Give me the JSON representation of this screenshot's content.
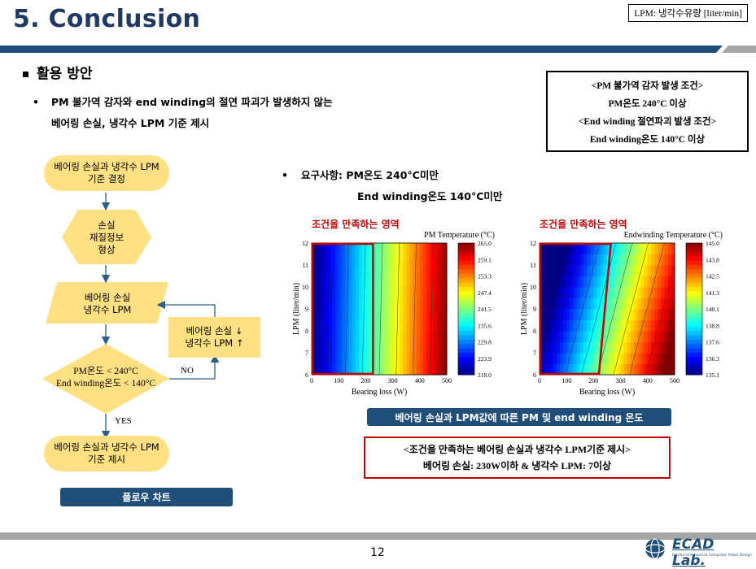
{
  "header": {
    "title": "5. Conclusion",
    "legend_note": "LPM: 냉각수유량 [liter/min]"
  },
  "section": {
    "heading": "활용 방안",
    "bullet1_line1": "PM 불가역 감자와 end winding의 절연 파괴가 발생하지 않는",
    "bullet1_line2": "베어링 손실, 냉각수 LPM 기준 제시",
    "bullet2_line1": "요구사항: PM온도 240°C미만",
    "bullet2_line2": "End winding온도 140°C미만"
  },
  "condition_box": {
    "line1": "<PM 불가역 감자 발생 조건>",
    "line2": "PM온도 240°C 이상",
    "line3": "<End winding 절연파괴 발생 조건>",
    "line4": "End winding온도 140°C 이상"
  },
  "flowchart": {
    "start": [
      "베어링 손실과 냉각수 LPM",
      "기준 결정"
    ],
    "hex": [
      "손실",
      "재질정보",
      "형상"
    ],
    "input": [
      "베어링 손실",
      "냉각수 LPM"
    ],
    "decision": [
      "PM온도 < 240°C",
      "End winding온도 < 140°C"
    ],
    "adjust": [
      "베어링 손실 ↓",
      "냉각수 LPM ↑"
    ],
    "no_label": "NO",
    "yes_label": "YES",
    "end": [
      "베어링 손실과 냉각수 LPM",
      "기준 제시"
    ],
    "caption": "플로우 차트"
  },
  "chart_data": [
    {
      "type": "heatmap",
      "region_label": "조건을 만족하는 영역",
      "colorbar_title": "PM Temperature (°C)",
      "xlabel": "Bearing loss (W)",
      "ylabel": "LPM (liter/min)",
      "x_ticks": [
        "0",
        "100",
        "200",
        "300",
        "400",
        "500"
      ],
      "y_ticks": [
        "6",
        "7",
        "8",
        "9",
        "10",
        "11",
        "12"
      ],
      "xlim": [
        0,
        500
      ],
      "ylim": [
        6,
        12
      ],
      "colorbar_ticks": [
        "265.0",
        "259.1",
        "253.3",
        "247.4",
        "241.5",
        "235.6",
        "229.8",
        "223.9",
        "218.0"
      ],
      "region": {
        "x": [
          0,
          230
        ],
        "y": [
          6,
          12
        ]
      }
    },
    {
      "type": "heatmap",
      "region_label": "조건을 만족하는 영역",
      "colorbar_title": "Endwinding Temperature (°C)",
      "xlabel": "Bearing loss (W)",
      "ylabel": "LPM (liter/min)",
      "x_ticks": [
        "0",
        "100",
        "200",
        "300",
        "400",
        "500"
      ],
      "y_ticks": [
        "6",
        "7",
        "8",
        "9",
        "10",
        "11",
        "12"
      ],
      "xlim": [
        0,
        500
      ],
      "ylim": [
        6,
        12
      ],
      "colorbar_ticks": [
        "145.0",
        "143.8",
        "142.5",
        "141.3",
        "140.1",
        "138.8",
        "137.6",
        "136.3",
        "135.1"
      ],
      "region": {
        "x": [
          0,
          270
        ],
        "y": [
          6,
          12
        ]
      }
    }
  ],
  "chart_caption": "베어링 손실과 LPM값에 따른 PM 및  end winding 온도",
  "result_box": {
    "line1": "<조건을 만족하는 베어링 손실과 냉각수 LPM기준 제시>",
    "line2": "베어링 손실: 230W이하 & 냉각수 LPM: 7이상"
  },
  "footer": {
    "page_number": "12",
    "logo_text": "ECAD Lab.",
    "logo_subtext": "Electro-mechanical Computer Aided Design"
  }
}
